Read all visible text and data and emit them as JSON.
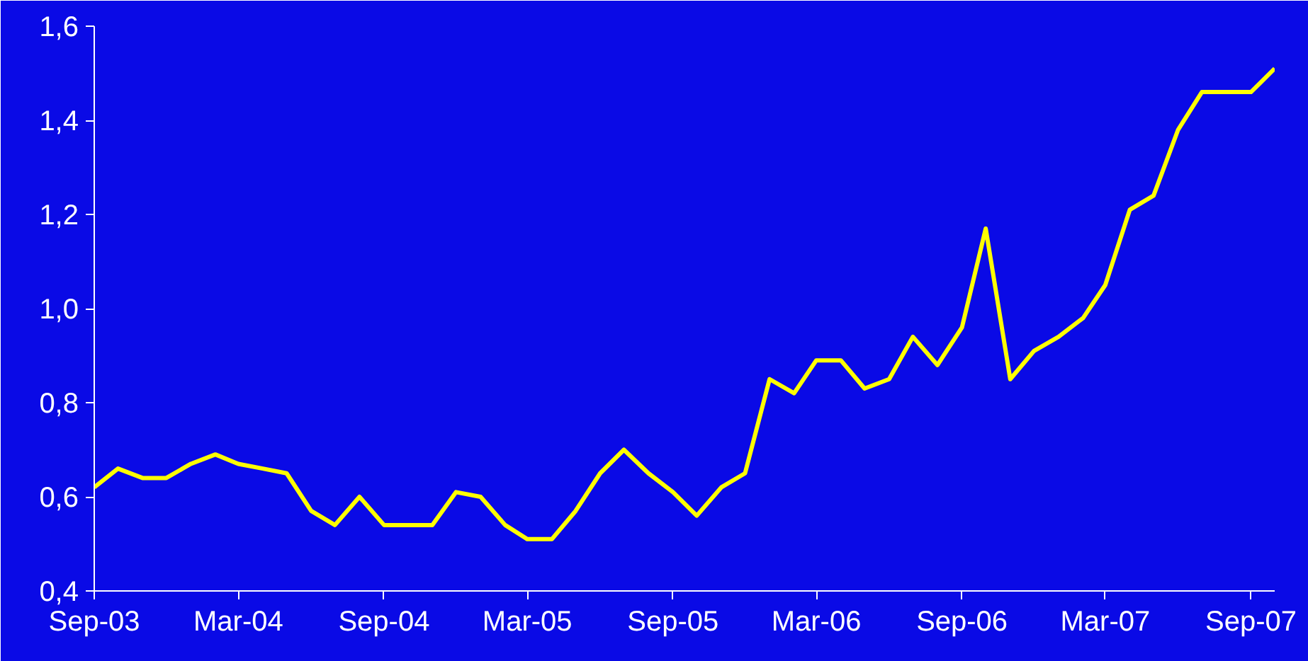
{
  "chart_data": {
    "type": "line",
    "x": [
      "2003-09",
      "2003-10",
      "2003-11",
      "2003-12",
      "2004-01",
      "2004-02",
      "2004-03",
      "2004-04",
      "2004-05",
      "2004-06",
      "2004-07",
      "2004-08",
      "2004-09",
      "2004-10",
      "2004-11",
      "2004-12",
      "2005-01",
      "2005-02",
      "2005-03",
      "2005-04",
      "2005-05",
      "2005-06",
      "2005-07",
      "2005-08",
      "2005-09",
      "2005-10",
      "2005-11",
      "2005-12",
      "2006-01",
      "2006-02",
      "2006-03",
      "2006-04",
      "2006-05",
      "2006-06",
      "2006-07",
      "2006-08",
      "2006-09",
      "2006-10",
      "2006-11",
      "2006-12",
      "2007-01",
      "2007-02",
      "2007-03",
      "2007-04",
      "2007-05",
      "2007-06",
      "2007-07",
      "2007-08",
      "2007-09",
      "2007-10"
    ],
    "series": [
      {
        "color": "#ffff00",
        "values": [
          0.62,
          0.66,
          0.64,
          0.64,
          0.67,
          0.69,
          0.67,
          0.66,
          0.65,
          0.57,
          0.54,
          0.6,
          0.54,
          0.54,
          0.54,
          0.61,
          0.6,
          0.54,
          0.51,
          0.51,
          0.57,
          0.65,
          0.7,
          0.65,
          0.61,
          0.56,
          0.62,
          0.65,
          0.85,
          0.82,
          0.89,
          0.89,
          0.83,
          0.85,
          0.94,
          0.88,
          0.96,
          1.17,
          0.85,
          0.91,
          0.94,
          0.98,
          1.05,
          1.21,
          1.24,
          1.38,
          1.46,
          1.46,
          1.46,
          1.51
        ]
      }
    ],
    "xlim": [
      "2003-09",
      "2007-10"
    ],
    "xticks": [
      {
        "value": "2003-09",
        "label": "Sep-03"
      },
      {
        "value": "2004-03",
        "label": "Mar-04"
      },
      {
        "value": "2004-09",
        "label": "Sep-04"
      },
      {
        "value": "2005-03",
        "label": "Mar-05"
      },
      {
        "value": "2005-09",
        "label": "Sep-05"
      },
      {
        "value": "2006-03",
        "label": "Mar-06"
      },
      {
        "value": "2006-09",
        "label": "Sep-06"
      },
      {
        "value": "2007-03",
        "label": "Mar-07"
      },
      {
        "value": "2007-09",
        "label": "Sep-07"
      }
    ],
    "ylim": [
      0.4,
      1.6
    ],
    "yticks": [
      {
        "value": 0.4,
        "label": "0,4"
      },
      {
        "value": 0.6,
        "label": "0,6"
      },
      {
        "value": 0.8,
        "label": "0,8"
      },
      {
        "value": 1.0,
        "label": "1,0"
      },
      {
        "value": 1.2,
        "label": "1,2"
      },
      {
        "value": 1.4,
        "label": "1,4"
      },
      {
        "value": 1.6,
        "label": "1,6"
      }
    ],
    "grid": false,
    "marker": "none",
    "line_style": "solid"
  }
}
